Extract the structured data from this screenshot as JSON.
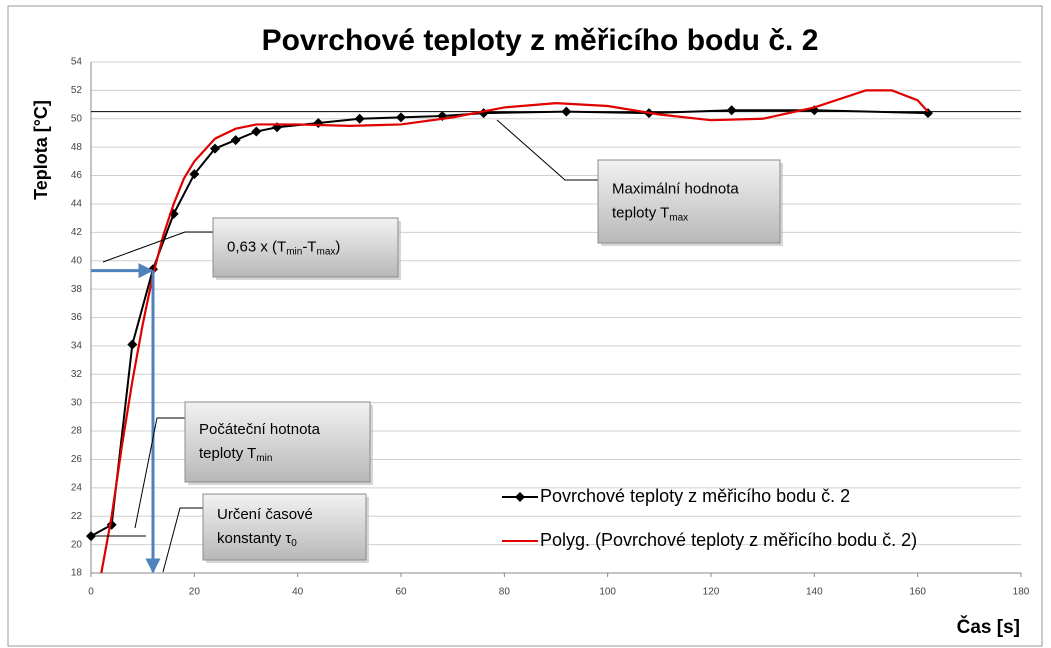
{
  "chart_data": {
    "type": "line",
    "title": "Povrchové teploty z měřicího bodu č. 2",
    "x_label": "Čas [s]",
    "y_label": "Teplota [°C]",
    "xlim": [
      0,
      180
    ],
    "ylim": [
      18,
      54
    ],
    "xticks": [
      0,
      20,
      40,
      60,
      80,
      100,
      120,
      140,
      160,
      180
    ],
    "yticks": [
      18,
      20,
      22,
      24,
      26,
      28,
      30,
      32,
      34,
      36,
      38,
      40,
      42,
      44,
      46,
      48,
      50,
      52,
      54
    ],
    "grid": true,
    "legend": "lower right",
    "series": [
      {
        "name": "Povrchové teploty z měřicího bodu č. 2",
        "color": "#000000",
        "marker": "diamond",
        "x": [
          0,
          4,
          8,
          12,
          16,
          20,
          24,
          28,
          32,
          36,
          44,
          52,
          60,
          68,
          76,
          92,
          108,
          124,
          140,
          162
        ],
        "values": [
          20.6,
          21.4,
          34.1,
          39.4,
          43.3,
          46.1,
          47.9,
          48.5,
          49.1,
          49.4,
          49.7,
          50.0,
          50.1,
          50.2,
          50.4,
          50.5,
          50.4,
          50.6,
          50.6,
          50.4
        ]
      },
      {
        "name": "Polyg. (Povrchové teploty z měřicího bodu č. 2)",
        "color": "#e00000",
        "x": [
          2,
          4,
          6,
          8,
          10,
          12,
          14,
          16,
          18,
          20,
          24,
          28,
          32,
          40,
          50,
          60,
          70,
          80,
          90,
          100,
          110,
          120,
          130,
          140,
          150,
          155,
          160,
          162
        ],
        "values": [
          18,
          22,
          27,
          31.5,
          35.5,
          39,
          41.8,
          44,
          45.8,
          47,
          48.6,
          49.3,
          49.6,
          49.6,
          49.5,
          49.6,
          50.1,
          50.8,
          51.1,
          50.9,
          50.3,
          49.9,
          50.0,
          50.8,
          52.0,
          52.0,
          51.3,
          50.5
        ]
      }
    ],
    "max_line": 50.5,
    "time_constant_marker": {
      "x": 12,
      "y": 39.3
    },
    "annotations": [
      {
        "lines": [
          [
            {
              "text": "Maximální hodnota"
            }
          ],
          [
            {
              "text": "teploty T"
            },
            {
              "sub": "max"
            }
          ]
        ]
      },
      {
        "lines": [
          [
            {
              "text": "0,63 x (T"
            },
            {
              "sub": "min"
            },
            {
              "text": "-T"
            },
            {
              "sub": "max"
            },
            {
              "text": ")"
            }
          ]
        ]
      },
      {
        "lines": [
          [
            {
              "text": "Počáteční hotnota"
            }
          ],
          [
            {
              "text": "teploty T"
            },
            {
              "sub": "min"
            }
          ]
        ]
      },
      {
        "lines": [
          [
            {
              "text": "Určení časové"
            }
          ],
          [
            {
              "text": "konstanty τ"
            },
            {
              "sub": "0"
            }
          ]
        ]
      }
    ]
  }
}
